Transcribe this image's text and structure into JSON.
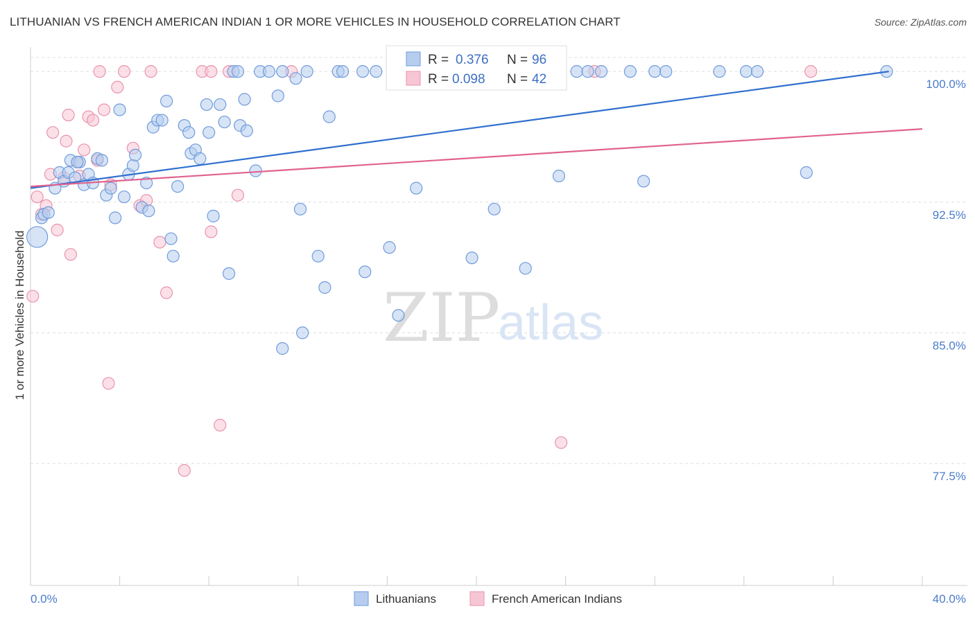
{
  "header": {
    "title": "LITHUANIAN VS FRENCH AMERICAN INDIAN 1 OR MORE VEHICLES IN HOUSEHOLD CORRELATION CHART",
    "source": "Source: ZipAtlas.com"
  },
  "watermark": {
    "zip": "ZIP",
    "atlas": "atlas"
  },
  "legend_top": [
    {
      "r_label": "R =",
      "r_value": "0.376",
      "n_label": "N =",
      "n_value": "96"
    },
    {
      "r_label": "R =",
      "r_value": "0.098",
      "n_label": "N =",
      "n_value": "42"
    }
  ],
  "legend_bottom": [
    {
      "label": "Lithuanians"
    },
    {
      "label": "French American Indians"
    }
  ],
  "colors": {
    "blue_fill": "#b7cdef",
    "blue_stroke": "#6f9bdc",
    "blue_line": "#2f6fcf",
    "pink_fill": "#f7c6d5",
    "pink_stroke": "#e993ad",
    "pink_line": "#e0628f",
    "grid": "#dddddd",
    "tick_label": "#4a7cc9"
  },
  "chart_data": {
    "type": "scatter",
    "title": "LITHUANIAN VS FRENCH AMERICAN INDIAN 1 OR MORE VEHICLES IN HOUSEHOLD CORRELATION CHART",
    "xlabel": "",
    "ylabel": "1 or more Vehicles in Household",
    "xlim": [
      0,
      40
    ],
    "ylim": [
      70.5,
      101
    ],
    "x_tick_labels": [
      "0.0%",
      "40.0%"
    ],
    "y_ticks": [
      100,
      92.5,
      85,
      77.5
    ],
    "y_tick_labels": [
      "100.0%",
      "92.5%",
      "85.0%",
      "77.5%"
    ],
    "grid": true,
    "legend_position": "top-center",
    "series": [
      {
        "name": "Lithuanians",
        "r": 0.376,
        "n": 96,
        "trend": {
          "x": [
            0,
            38.5
          ],
          "y": [
            93.3,
            100.0
          ]
        },
        "points": [
          [
            0.3,
            90.5,
            2
          ],
          [
            0.5,
            91.6,
            1
          ],
          [
            0.6,
            91.8,
            1
          ],
          [
            0.8,
            91.9,
            1
          ],
          [
            1.1,
            93.3,
            1
          ],
          [
            1.3,
            94.2,
            1
          ],
          [
            1.5,
            93.7,
            1
          ],
          [
            1.7,
            94.2,
            1
          ],
          [
            1.8,
            94.9,
            1
          ],
          [
            2.0,
            93.9,
            1
          ],
          [
            2.2,
            94.8,
            1
          ],
          [
            2.4,
            93.5,
            1
          ],
          [
            2.6,
            94.1,
            1
          ],
          [
            2.8,
            93.6,
            1
          ],
          [
            3.0,
            95.0,
            1
          ],
          [
            3.2,
            94.9,
            1
          ],
          [
            3.4,
            92.9,
            1
          ],
          [
            3.6,
            93.3,
            1
          ],
          [
            3.8,
            91.6,
            1
          ],
          [
            4.0,
            97.8,
            1
          ],
          [
            4.2,
            92.8,
            1
          ],
          [
            4.4,
            94.1,
            1
          ],
          [
            4.6,
            94.6,
            1
          ],
          [
            4.7,
            95.2,
            1
          ],
          [
            5.0,
            92.2,
            1
          ],
          [
            5.2,
            93.6,
            1
          ],
          [
            5.3,
            92.0,
            1
          ],
          [
            5.5,
            96.8,
            1
          ],
          [
            5.7,
            97.2,
            1
          ],
          [
            5.9,
            97.2,
            1
          ],
          [
            6.1,
            98.3,
            1
          ],
          [
            6.3,
            90.4,
            1
          ],
          [
            6.4,
            89.4,
            1
          ],
          [
            6.6,
            93.4,
            1
          ],
          [
            6.9,
            96.9,
            1
          ],
          [
            7.1,
            96.5,
            1
          ],
          [
            7.2,
            95.3,
            1
          ],
          [
            7.4,
            95.5,
            1
          ],
          [
            7.6,
            95.0,
            1
          ],
          [
            7.9,
            98.1,
            1
          ],
          [
            8.0,
            96.5,
            1
          ],
          [
            8.2,
            91.7,
            1
          ],
          [
            8.5,
            98.1,
            1
          ],
          [
            8.7,
            97.1,
            1
          ],
          [
            8.9,
            88.4,
            1
          ],
          [
            9.1,
            100.0,
            1
          ],
          [
            9.4,
            96.9,
            1
          ],
          [
            9.6,
            98.4,
            1
          ],
          [
            9.7,
            96.6,
            1
          ],
          [
            10.1,
            94.3,
            1
          ],
          [
            10.3,
            100.0,
            1
          ],
          [
            10.7,
            100.0,
            1
          ],
          [
            11.1,
            98.6,
            1
          ],
          [
            11.3,
            100.0,
            1
          ],
          [
            11.3,
            84.1,
            1
          ],
          [
            11.9,
            99.6,
            1
          ],
          [
            12.1,
            92.1,
            1
          ],
          [
            12.2,
            85.0,
            1
          ],
          [
            12.9,
            89.4,
            1
          ],
          [
            13.2,
            87.6,
            1
          ],
          [
            13.4,
            97.4,
            1
          ],
          [
            13.8,
            100.0,
            1
          ],
          [
            14.0,
            100.0,
            1
          ],
          [
            14.9,
            100.0,
            1
          ],
          [
            15.5,
            100.0,
            1
          ],
          [
            15.0,
            88.5,
            1
          ],
          [
            16.3,
            100.0,
            1
          ],
          [
            16.1,
            89.9,
            1
          ],
          [
            16.5,
            86.0,
            1
          ],
          [
            17.3,
            93.3,
            1
          ],
          [
            18.1,
            100.0,
            1
          ],
          [
            19.0,
            100.0,
            1
          ],
          [
            20.0,
            100.0,
            1
          ],
          [
            19.8,
            89.3,
            1
          ],
          [
            20.8,
            92.1,
            1
          ],
          [
            21.8,
            100.0,
            1
          ],
          [
            22.8,
            100.0,
            1
          ],
          [
            22.2,
            88.7,
            1
          ],
          [
            23.0,
            100.0,
            1
          ],
          [
            23.7,
            94.0,
            1
          ],
          [
            24.5,
            100.0,
            1
          ],
          [
            25.0,
            100.0,
            1
          ],
          [
            25.6,
            100.0,
            1
          ],
          [
            26.9,
            100.0,
            1
          ],
          [
            27.5,
            93.7,
            1
          ],
          [
            28.0,
            100.0,
            1
          ],
          [
            28.5,
            100.0,
            1
          ],
          [
            30.9,
            100.0,
            1
          ],
          [
            32.1,
            100.0,
            1
          ],
          [
            32.6,
            100.0,
            1
          ],
          [
            34.8,
            94.2,
            1
          ],
          [
            38.4,
            100.0,
            1
          ],
          [
            16.3,
            100.0,
            1
          ],
          [
            12.4,
            100.0,
            1
          ],
          [
            9.3,
            100.0,
            1
          ],
          [
            2.1,
            94.8,
            1
          ]
        ]
      },
      {
        "name": "French American Indians",
        "r": 0.098,
        "n": 42,
        "trend": {
          "x": [
            0,
            40
          ],
          "y": [
            93.4,
            96.7
          ]
        },
        "points": [
          [
            0.1,
            87.1,
            1
          ],
          [
            0.3,
            92.8,
            1
          ],
          [
            0.5,
            91.8,
            1
          ],
          [
            0.7,
            92.3,
            1
          ],
          [
            0.9,
            94.1,
            1
          ],
          [
            1.0,
            96.5,
            1
          ],
          [
            1.2,
            90.9,
            1
          ],
          [
            1.5,
            93.9,
            1
          ],
          [
            1.6,
            96.0,
            1
          ],
          [
            1.7,
            97.5,
            1
          ],
          [
            1.8,
            89.5,
            1
          ],
          [
            2.1,
            94.8,
            1
          ],
          [
            2.2,
            94.0,
            1
          ],
          [
            2.4,
            95.5,
            1
          ],
          [
            2.6,
            97.4,
            1
          ],
          [
            2.8,
            97.2,
            1
          ],
          [
            3.0,
            94.9,
            1
          ],
          [
            3.1,
            100.0,
            1
          ],
          [
            3.3,
            97.8,
            1
          ],
          [
            3.5,
            82.1,
            1
          ],
          [
            3.6,
            93.5,
            1
          ],
          [
            3.9,
            99.1,
            1
          ],
          [
            4.2,
            100.0,
            1
          ],
          [
            4.6,
            95.6,
            1
          ],
          [
            4.9,
            92.3,
            1
          ],
          [
            5.2,
            92.6,
            1
          ],
          [
            5.4,
            100.0,
            1
          ],
          [
            5.8,
            90.2,
            1
          ],
          [
            6.1,
            87.3,
            1
          ],
          [
            6.9,
            77.1,
            1
          ],
          [
            7.7,
            100.0,
            1
          ],
          [
            8.1,
            100.0,
            1
          ],
          [
            8.1,
            90.8,
            1
          ],
          [
            8.5,
            79.7,
            1
          ],
          [
            8.9,
            100.0,
            1
          ],
          [
            9.3,
            92.9,
            1
          ],
          [
            11.7,
            100.0,
            1
          ],
          [
            18.2,
            100.0,
            1
          ],
          [
            23.5,
            100.0,
            1
          ],
          [
            23.8,
            78.7,
            1
          ],
          [
            25.3,
            100.0,
            1
          ],
          [
            35.0,
            100.0,
            1
          ]
        ]
      }
    ]
  }
}
